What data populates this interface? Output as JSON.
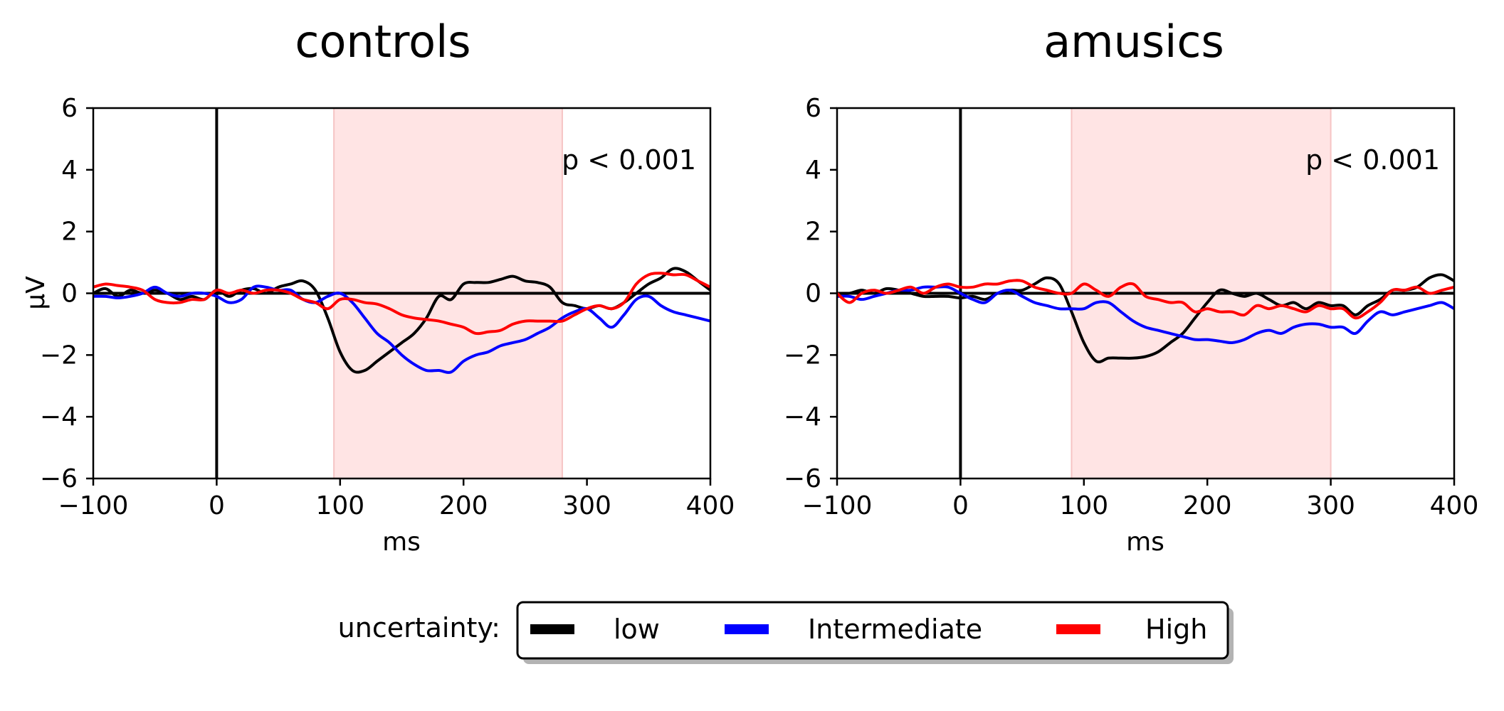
{
  "legend": {
    "title": "uncertainty:",
    "entries": [
      {
        "label": "low",
        "color": "#000000"
      },
      {
        "label": "Intermediate",
        "color": "#0000ff"
      },
      {
        "label": "High",
        "color": "#ff0000"
      }
    ]
  },
  "chart_data": [
    {
      "type": "line",
      "title": "controls",
      "xlabel": "ms",
      "ylabel": "μV",
      "xlim": [
        -100,
        400
      ],
      "ylim": [
        -6,
        6
      ],
      "xticks": [
        -100,
        0,
        100,
        200,
        300,
        400
      ],
      "yticks": [
        -6,
        -4,
        -2,
        0,
        2,
        4,
        6
      ],
      "xtick_labels": [
        "−100",
        "0",
        "100",
        "200",
        "300",
        "400"
      ],
      "ytick_labels": [
        "−6",
        "−4",
        "−2",
        "0",
        "2",
        "4",
        "6"
      ],
      "shaded_region": {
        "x_start": 95,
        "x_end": 280,
        "color": "#ffe4e4"
      },
      "annotation": "p < 0.001",
      "grid": false,
      "x": [
        -100,
        -90,
        -80,
        -70,
        -60,
        -50,
        -40,
        -30,
        -20,
        -10,
        0,
        10,
        20,
        30,
        40,
        50,
        60,
        70,
        80,
        90,
        100,
        110,
        120,
        130,
        140,
        150,
        160,
        170,
        180,
        190,
        200,
        210,
        220,
        230,
        240,
        250,
        260,
        270,
        280,
        290,
        300,
        310,
        320,
        330,
        340,
        350,
        360,
        370,
        380,
        390,
        400
      ],
      "series": [
        {
          "name": "low",
          "color": "#000000",
          "values": [
            0.0,
            0.15,
            -0.1,
            0.1,
            0.0,
            0.1,
            0.0,
            -0.2,
            -0.1,
            -0.2,
            0.1,
            -0.1,
            0.1,
            0.15,
            0.0,
            0.2,
            0.3,
            0.4,
            0.1,
            -0.8,
            -1.9,
            -2.5,
            -2.5,
            -2.2,
            -1.9,
            -1.6,
            -1.3,
            -0.8,
            -0.1,
            -0.2,
            0.3,
            0.35,
            0.35,
            0.45,
            0.55,
            0.4,
            0.35,
            0.2,
            -0.3,
            -0.4,
            -0.5,
            -0.4,
            -0.5,
            -0.3,
            0.0,
            0.3,
            0.5,
            0.8,
            0.7,
            0.4,
            0.1
          ]
        },
        {
          "name": "Intermediate",
          "color": "#0000ff",
          "values": [
            -0.1,
            -0.1,
            -0.15,
            -0.1,
            0.0,
            0.2,
            0.0,
            -0.1,
            0.0,
            0.0,
            -0.1,
            -0.3,
            -0.2,
            0.2,
            0.2,
            0.1,
            0.1,
            -0.2,
            -0.3,
            -0.1,
            0.0,
            -0.3,
            -0.8,
            -1.3,
            -1.6,
            -2.0,
            -2.3,
            -2.5,
            -2.5,
            -2.55,
            -2.2,
            -2.0,
            -1.9,
            -1.7,
            -1.6,
            -1.5,
            -1.3,
            -1.1,
            -0.8,
            -0.6,
            -0.5,
            -0.8,
            -1.1,
            -0.7,
            -0.2,
            -0.1,
            -0.4,
            -0.6,
            -0.7,
            -0.8,
            -0.9
          ]
        },
        {
          "name": "High",
          "color": "#ff0000",
          "values": [
            0.2,
            0.3,
            0.25,
            0.2,
            0.1,
            -0.2,
            -0.3,
            -0.3,
            -0.2,
            -0.2,
            0.1,
            0.0,
            0.1,
            0.0,
            0.1,
            0.1,
            0.0,
            -0.2,
            -0.3,
            -0.5,
            -0.2,
            -0.2,
            -0.3,
            -0.35,
            -0.5,
            -0.7,
            -0.8,
            -0.85,
            -0.9,
            -1.0,
            -1.1,
            -1.3,
            -1.25,
            -1.2,
            -1.0,
            -0.9,
            -0.9,
            -0.9,
            -0.9,
            -0.7,
            -0.5,
            -0.4,
            -0.5,
            -0.3,
            0.3,
            0.6,
            0.65,
            0.6,
            0.6,
            0.4,
            0.2
          ]
        }
      ]
    },
    {
      "type": "line",
      "title": "amusics",
      "xlabel": "ms",
      "ylabel": "",
      "xlim": [
        -100,
        400
      ],
      "ylim": [
        -6,
        6
      ],
      "xticks": [
        -100,
        0,
        100,
        200,
        300,
        400
      ],
      "yticks": [
        -6,
        -4,
        -2,
        0,
        2,
        4,
        6
      ],
      "xtick_labels": [
        "−100",
        "0",
        "100",
        "200",
        "300",
        "400"
      ],
      "ytick_labels": [
        "−6",
        "−4",
        "−2",
        "0",
        "2",
        "4",
        "6"
      ],
      "shaded_region": {
        "x_start": 90,
        "x_end": 300,
        "color": "#ffe4e4"
      },
      "annotation": "p < 0.001",
      "grid": false,
      "x": [
        -100,
        -90,
        -80,
        -70,
        -60,
        -50,
        -40,
        -30,
        -20,
        -10,
        0,
        10,
        20,
        30,
        40,
        50,
        60,
        70,
        80,
        90,
        100,
        110,
        120,
        130,
        140,
        150,
        160,
        170,
        180,
        190,
        200,
        210,
        220,
        230,
        240,
        250,
        260,
        270,
        280,
        290,
        300,
        310,
        320,
        330,
        340,
        350,
        360,
        370,
        380,
        390,
        400
      ],
      "series": [
        {
          "name": "low",
          "color": "#000000",
          "values": [
            0.0,
            0.0,
            0.1,
            0.0,
            0.15,
            0.1,
            0.0,
            -0.1,
            -0.1,
            -0.1,
            -0.15,
            -0.1,
            -0.2,
            0.0,
            0.1,
            0.1,
            0.3,
            0.5,
            0.3,
            -0.6,
            -1.6,
            -2.2,
            -2.1,
            -2.1,
            -2.1,
            -2.05,
            -1.9,
            -1.6,
            -1.3,
            -0.8,
            -0.3,
            0.1,
            0.0,
            -0.1,
            0.0,
            -0.2,
            -0.4,
            -0.3,
            -0.5,
            -0.3,
            -0.4,
            -0.4,
            -0.7,
            -0.4,
            -0.2,
            0.1,
            0.1,
            0.2,
            0.5,
            0.6,
            0.4
          ]
        },
        {
          "name": "Intermediate",
          "color": "#0000ff",
          "values": [
            -0.1,
            -0.1,
            -0.2,
            -0.1,
            0.0,
            0.1,
            0.1,
            0.2,
            0.2,
            0.2,
            0.0,
            -0.2,
            -0.3,
            0.0,
            0.1,
            -0.1,
            -0.3,
            -0.4,
            -0.5,
            -0.5,
            -0.5,
            -0.3,
            -0.3,
            -0.6,
            -0.9,
            -1.1,
            -1.2,
            -1.3,
            -1.4,
            -1.5,
            -1.5,
            -1.55,
            -1.6,
            -1.5,
            -1.3,
            -1.2,
            -1.3,
            -1.1,
            -1.0,
            -1.0,
            -1.1,
            -1.1,
            -1.3,
            -0.9,
            -0.6,
            -0.7,
            -0.6,
            -0.5,
            -0.4,
            -0.3,
            -0.5
          ]
        },
        {
          "name": "High",
          "color": "#ff0000",
          "values": [
            0.0,
            -0.3,
            0.0,
            0.1,
            0.0,
            0.1,
            0.2,
            0.0,
            0.2,
            0.3,
            0.2,
            0.2,
            0.3,
            0.3,
            0.4,
            0.4,
            0.2,
            0.1,
            0.0,
            0.0,
            0.3,
            0.1,
            -0.1,
            0.2,
            0.3,
            -0.1,
            -0.2,
            -0.3,
            -0.3,
            -0.6,
            -0.5,
            -0.6,
            -0.6,
            -0.7,
            -0.4,
            -0.5,
            -0.4,
            -0.5,
            -0.6,
            -0.4,
            -0.5,
            -0.5,
            -0.8,
            -0.6,
            -0.3,
            0.1,
            0.1,
            0.2,
            0.0,
            0.1,
            0.2
          ]
        }
      ]
    }
  ]
}
